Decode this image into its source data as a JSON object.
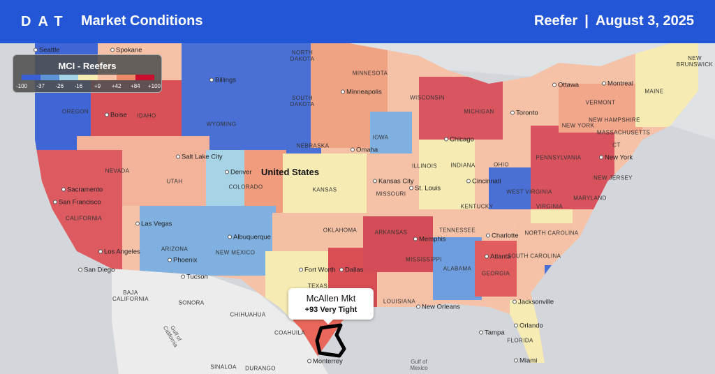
{
  "header": {
    "logo": "DAT",
    "title": "Market Conditions",
    "equipment": "Reefer",
    "separator": "|",
    "date": "August 3, 2025"
  },
  "legend": {
    "title": "MCI - Reefers",
    "ticks": [
      "-100",
      "-37",
      "-26",
      "-16",
      "+9",
      "+42",
      "+84",
      "+100"
    ],
    "colors": [
      "#3b5fd3",
      "#5f93d8",
      "#a6d3e6",
      "#f6ebb2",
      "#f5c2a8",
      "#ec8a69",
      "#c8102e"
    ]
  },
  "tooltip": {
    "market": "McAllen Mkt",
    "status": "+93 Very Tight"
  },
  "country": "United States",
  "cities": [
    "Seattle",
    "Spokane",
    "Billings",
    "Boise",
    "Salt Lake City",
    "Denver",
    "Sacramento",
    "San Francisco",
    "Las Vegas",
    "Los Angeles",
    "San Diego",
    "Phoenix",
    "Tucson",
    "Albuquerque",
    "Fort Worth",
    "Dallas",
    "Omaha",
    "Minneapolis",
    "Kansas City",
    "St. Louis",
    "Chicago",
    "Cincinnati",
    "Memphis",
    "Atlanta",
    "Charlotte",
    "Jacksonville",
    "Orlando",
    "Tampa",
    "Miami",
    "New Orleans",
    "Toronto",
    "Ottawa",
    "Montreal",
    "New York",
    "Monterrey"
  ],
  "regions": [
    "NORTH DAKOTA",
    "MINNESOTA",
    "SOUTH DAKOTA",
    "WYOMING",
    "OREGON",
    "IDAHO",
    "NEBRASKA",
    "IOWA",
    "WISCONSIN",
    "MICHIGAN",
    "NEVADA",
    "UTAH",
    "COLORADO",
    "KANSAS",
    "ILLINOIS",
    "INDIANA",
    "OHIO",
    "MISSOURI",
    "PENNSYLVANIA",
    "NEW YORK",
    "WEST VIRGINIA",
    "VIRGINIA",
    "KENTUCKY",
    "TENNESSEE",
    "NORTH CAROLINA",
    "SOUTH CAROLINA",
    "GEORGIA",
    "ALABAMA",
    "MISSISSIPPI",
    "ARKANSAS",
    "LOUISIANA",
    "OKLAHOMA",
    "TEXAS",
    "NEW MEXICO",
    "ARIZONA",
    "CALIFORNIA",
    "FLORIDA",
    "MARYLAND",
    "NEW JERSEY",
    "CT",
    "VERMONT",
    "NEW HAMPSHIRE",
    "MASSACHUSETTS",
    "MAINE",
    "NEW BRUNSWICK",
    "BAJA CALIFORNIA",
    "SONORA",
    "CHIHUAHUA",
    "COAHUILA",
    "SINALOA",
    "DURANGO"
  ],
  "waters": [
    "Gulf of Mexico",
    "Gulf of California"
  ]
}
